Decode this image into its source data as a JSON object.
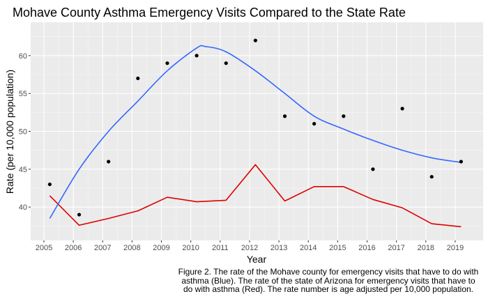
{
  "chart_data": {
    "type": "scatter",
    "title": "Mohave County Asthma Emergency Visits Compared to the State Rate",
    "xlabel": "Year",
    "ylabel": "Rate (per 10,000 population)",
    "xlim": [
      2004.55,
      2019.95
    ],
    "ylim": [
      35.6,
      64.4
    ],
    "x_ticks": [
      2005,
      2006,
      2007,
      2008,
      2009,
      2010,
      2011,
      2012,
      2013,
      2014,
      2015,
      2016,
      2017,
      2018,
      2019
    ],
    "y_ticks": [
      40,
      45,
      50,
      55,
      60
    ],
    "grid": true,
    "series": [
      {
        "kind": "points",
        "color": "#000000",
        "x": [
          2005.2,
          2006.2,
          2007.2,
          2008.2,
          2009.2,
          2010.2,
          2011.2,
          2012.2,
          2013.2,
          2014.2,
          2015.2,
          2016.2,
          2017.2,
          2018.2,
          2019.2
        ],
        "y": [
          43,
          39,
          46,
          57,
          59,
          60,
          59,
          62,
          52,
          51,
          52,
          45,
          53,
          44,
          46
        ]
      },
      {
        "kind": "smooth",
        "color": "#3366ff",
        "x": [
          2005.2,
          2006.2,
          2007.2,
          2008.2,
          2009.2,
          2010.2,
          2010.5,
          2011.2,
          2012.2,
          2013.2,
          2014.2,
          2015.2,
          2016.2,
          2017.2,
          2018.2,
          2019.2
        ],
        "y": [
          38.5,
          45.0,
          50.0,
          54.0,
          58.0,
          61.0,
          61.2,
          60.5,
          58.0,
          55.0,
          52.0,
          50.3,
          48.8,
          47.5,
          46.5,
          45.9
        ]
      },
      {
        "kind": "line",
        "color": "#dd0000",
        "x": [
          2005.2,
          2006.2,
          2007.2,
          2008.2,
          2009.2,
          2010.2,
          2011.2,
          2012.2,
          2013.2,
          2014.2,
          2015.2,
          2016.2,
          2017.2,
          2018.2,
          2019.2
        ],
        "y": [
          41.5,
          37.6,
          38.5,
          39.5,
          41.3,
          40.7,
          40.9,
          45.6,
          40.8,
          42.7,
          42.7,
          41.0,
          39.9,
          37.8,
          37.4
        ]
      }
    ]
  },
  "caption": {
    "lines": [
      "Figure 2. The rate of the Mohave county for emergency visits that have to do with",
      "asthma (Blue).  The rate of the state of Arizona for emergency visits that have to",
      "do with asthma (Red). The rate number is age adjusted per 10,000 population."
    ]
  }
}
